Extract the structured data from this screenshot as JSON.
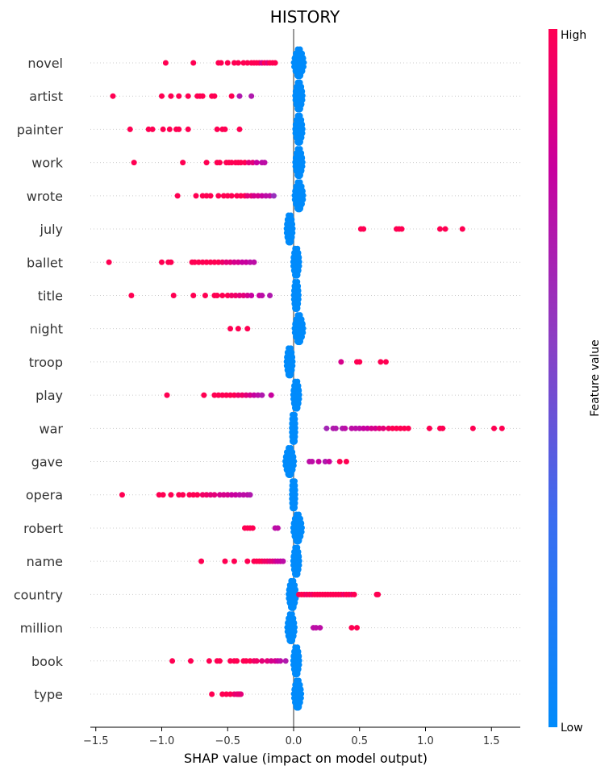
{
  "chart_data": {
    "type": "scatter",
    "subtype": "shap-beeswarm",
    "title": "HISTORY",
    "xlabel": "SHAP value (impact on model output)",
    "ylabel": "",
    "xlim": [
      -1.52,
      1.73
    ],
    "xticks": [
      -1.5,
      -1.0,
      -0.5,
      0.0,
      0.5,
      1.0,
      1.5
    ],
    "xtick_labels": [
      "−1.5",
      "−1.0",
      "−0.5",
      "0.0",
      "0.5",
      "1.0",
      "1.5"
    ],
    "grid": false,
    "colorbar": {
      "label": "Feature value",
      "high_label": "High",
      "low_label": "Low",
      "low_color": "#008bfb",
      "high_color": "#ff0052",
      "position": "right"
    },
    "features": [
      {
        "name": "novel",
        "blue_center": 0.04,
        "blue_width": 0.06,
        "points": [
          [
            -0.97,
            1
          ],
          [
            -0.76,
            1
          ],
          [
            -0.57,
            1
          ],
          [
            -0.55,
            1
          ],
          [
            -0.5,
            1
          ],
          [
            -0.45,
            1
          ],
          [
            -0.42,
            1
          ],
          [
            -0.38,
            1
          ],
          [
            -0.35,
            1
          ],
          [
            -0.32,
            1
          ],
          [
            -0.3,
            1
          ],
          [
            -0.28,
            1
          ],
          [
            -0.26,
            1
          ],
          [
            -0.24,
            0.85
          ],
          [
            -0.22,
            1
          ],
          [
            -0.2,
            0.9
          ],
          [
            -0.18,
            1
          ],
          [
            -0.16,
            1
          ],
          [
            -0.14,
            1
          ]
        ]
      },
      {
        "name": "artist",
        "blue_center": 0.04,
        "blue_width": 0.04,
        "points": [
          [
            -1.37,
            1
          ],
          [
            -1.0,
            1
          ],
          [
            -0.93,
            1
          ],
          [
            -0.87,
            1
          ],
          [
            -0.8,
            1
          ],
          [
            -0.73,
            1
          ],
          [
            -0.71,
            1
          ],
          [
            -0.69,
            1
          ],
          [
            -0.62,
            1
          ],
          [
            -0.6,
            1
          ],
          [
            -0.47,
            1
          ],
          [
            -0.41,
            0.7
          ],
          [
            -0.32,
            0.7
          ]
        ]
      },
      {
        "name": "painter",
        "blue_center": 0.04,
        "blue_width": 0.04,
        "points": [
          [
            -1.24,
            1
          ],
          [
            -1.1,
            1
          ],
          [
            -1.07,
            1
          ],
          [
            -0.99,
            1
          ],
          [
            -0.94,
            1
          ],
          [
            -0.89,
            1
          ],
          [
            -0.87,
            1
          ],
          [
            -0.8,
            1
          ],
          [
            -0.58,
            1
          ],
          [
            -0.54,
            1
          ],
          [
            -0.52,
            1
          ],
          [
            -0.41,
            1
          ]
        ]
      },
      {
        "name": "work",
        "blue_center": 0.04,
        "blue_width": 0.04,
        "points": [
          [
            -1.21,
            1
          ],
          [
            -0.84,
            1
          ],
          [
            -0.66,
            1
          ],
          [
            -0.58,
            1
          ],
          [
            -0.56,
            1
          ],
          [
            -0.51,
            1
          ],
          [
            -0.49,
            1
          ],
          [
            -0.47,
            1
          ],
          [
            -0.44,
            1
          ],
          [
            -0.42,
            1
          ],
          [
            -0.4,
            1
          ],
          [
            -0.37,
            1
          ],
          [
            -0.34,
            0.9
          ],
          [
            -0.31,
            0.9
          ],
          [
            -0.28,
            0.8
          ],
          [
            -0.24,
            0.75
          ],
          [
            -0.22,
            0.75
          ]
        ]
      },
      {
        "name": "wrote",
        "blue_center": 0.04,
        "blue_width": 0.05,
        "points": [
          [
            -0.88,
            1
          ],
          [
            -0.74,
            1
          ],
          [
            -0.69,
            1
          ],
          [
            -0.66,
            1
          ],
          [
            -0.63,
            1
          ],
          [
            -0.57,
            1
          ],
          [
            -0.53,
            1
          ],
          [
            -0.5,
            1
          ],
          [
            -0.47,
            1
          ],
          [
            -0.43,
            1
          ],
          [
            -0.4,
            1
          ],
          [
            -0.37,
            1
          ],
          [
            -0.35,
            0.9
          ],
          [
            -0.32,
            0.9
          ],
          [
            -0.3,
            0.85
          ],
          [
            -0.27,
            0.85
          ],
          [
            -0.24,
            0.8
          ],
          [
            -0.21,
            0.75
          ],
          [
            -0.18,
            0.75
          ],
          [
            -0.15,
            0.6
          ]
        ]
      },
      {
        "name": "july",
        "blue_center": -0.03,
        "blue_width": 0.03,
        "points": [
          [
            0.51,
            1
          ],
          [
            0.53,
            1
          ],
          [
            0.78,
            1
          ],
          [
            0.8,
            1
          ],
          [
            0.82,
            1
          ],
          [
            1.11,
            1
          ],
          [
            1.15,
            1
          ],
          [
            1.28,
            1
          ]
        ]
      },
      {
        "name": "ballet",
        "blue_center": 0.02,
        "blue_width": 0.03,
        "points": [
          [
            -1.4,
            1
          ],
          [
            -1.0,
            1
          ],
          [
            -0.95,
            1
          ],
          [
            -0.93,
            1
          ],
          [
            -0.77,
            1
          ],
          [
            -0.75,
            1
          ],
          [
            -0.72,
            1
          ],
          [
            -0.69,
            1
          ],
          [
            -0.66,
            1
          ],
          [
            -0.63,
            1
          ],
          [
            -0.6,
            1
          ],
          [
            -0.57,
            1
          ],
          [
            -0.54,
            0.95
          ],
          [
            -0.51,
            0.9
          ],
          [
            -0.48,
            0.9
          ],
          [
            -0.45,
            0.85
          ],
          [
            -0.42,
            0.85
          ],
          [
            -0.39,
            0.8
          ],
          [
            -0.36,
            0.8
          ],
          [
            -0.33,
            0.75
          ],
          [
            -0.3,
            0.75
          ]
        ]
      },
      {
        "name": "title",
        "blue_center": 0.02,
        "blue_width": 0.02,
        "points": [
          [
            -1.23,
            1
          ],
          [
            -0.91,
            1
          ],
          [
            -0.76,
            1
          ],
          [
            -0.67,
            1
          ],
          [
            -0.6,
            1
          ],
          [
            -0.58,
            1
          ],
          [
            -0.54,
            1
          ],
          [
            -0.5,
            1
          ],
          [
            -0.47,
            0.95
          ],
          [
            -0.44,
            0.95
          ],
          [
            -0.41,
            0.9
          ],
          [
            -0.38,
            0.9
          ],
          [
            -0.35,
            0.85
          ],
          [
            -0.32,
            0.8
          ],
          [
            -0.26,
            0.8
          ],
          [
            -0.24,
            0.75
          ],
          [
            -0.18,
            0.7
          ]
        ]
      },
      {
        "name": "night",
        "blue_center": 0.04,
        "blue_width": 0.05,
        "points": [
          [
            -0.48,
            1
          ],
          [
            -0.42,
            1
          ],
          [
            -0.35,
            1
          ]
        ]
      },
      {
        "name": "troop",
        "blue_center": -0.03,
        "blue_width": 0.03,
        "points": [
          [
            0.36,
            0.85
          ],
          [
            0.48,
            1
          ],
          [
            0.5,
            1
          ],
          [
            0.66,
            1
          ],
          [
            0.7,
            1
          ]
        ]
      },
      {
        "name": "play",
        "blue_center": 0.02,
        "blue_width": 0.03,
        "points": [
          [
            -0.96,
            1
          ],
          [
            -0.68,
            1
          ],
          [
            -0.6,
            1
          ],
          [
            -0.57,
            1
          ],
          [
            -0.54,
            1
          ],
          [
            -0.51,
            1
          ],
          [
            -0.48,
            1
          ],
          [
            -0.45,
            1
          ],
          [
            -0.42,
            0.95
          ],
          [
            -0.39,
            0.95
          ],
          [
            -0.36,
            0.9
          ],
          [
            -0.33,
            0.85
          ],
          [
            -0.3,
            0.8
          ],
          [
            -0.27,
            0.75
          ],
          [
            -0.24,
            0.7
          ],
          [
            -0.17,
            0.8
          ]
        ]
      },
      {
        "name": "war",
        "blue_center": 0.0,
        "blue_width": 0.01,
        "points": [
          [
            0.25,
            0.65
          ],
          [
            0.3,
            0.7
          ],
          [
            0.32,
            0.7
          ],
          [
            0.37,
            0.7
          ],
          [
            0.39,
            0.75
          ],
          [
            0.44,
            0.75
          ],
          [
            0.47,
            0.75
          ],
          [
            0.5,
            0.75
          ],
          [
            0.53,
            0.8
          ],
          [
            0.56,
            0.8
          ],
          [
            0.59,
            0.85
          ],
          [
            0.62,
            0.85
          ],
          [
            0.65,
            0.9
          ],
          [
            0.68,
            0.9
          ],
          [
            0.72,
            0.95
          ],
          [
            0.75,
            1
          ],
          [
            0.78,
            1
          ],
          [
            0.81,
            1
          ],
          [
            0.84,
            1
          ],
          [
            0.87,
            1
          ],
          [
            1.03,
            1
          ],
          [
            1.11,
            1
          ],
          [
            1.13,
            1
          ],
          [
            1.36,
            1
          ],
          [
            1.52,
            1
          ],
          [
            1.58,
            1
          ]
        ]
      },
      {
        "name": "gave",
        "blue_center": -0.03,
        "blue_width": 0.05,
        "points": [
          [
            0.12,
            0.75
          ],
          [
            0.14,
            0.75
          ],
          [
            0.19,
            0.8
          ],
          [
            0.24,
            0.7
          ],
          [
            0.27,
            0.8
          ],
          [
            0.35,
            1
          ],
          [
            0.4,
            1
          ]
        ]
      },
      {
        "name": "opera",
        "blue_center": 0.0,
        "blue_width": 0.01,
        "points": [
          [
            -1.3,
            1
          ],
          [
            -1.02,
            1
          ],
          [
            -0.99,
            1
          ],
          [
            -0.93,
            1
          ],
          [
            -0.87,
            1
          ],
          [
            -0.84,
            1
          ],
          [
            -0.79,
            1
          ],
          [
            -0.76,
            1
          ],
          [
            -0.73,
            1
          ],
          [
            -0.69,
            0.95
          ],
          [
            -0.66,
            0.95
          ],
          [
            -0.63,
            0.9
          ],
          [
            -0.6,
            0.9
          ],
          [
            -0.56,
            0.85
          ],
          [
            -0.53,
            0.85
          ],
          [
            -0.5,
            0.85
          ],
          [
            -0.47,
            0.8
          ],
          [
            -0.44,
            0.8
          ],
          [
            -0.41,
            0.75
          ],
          [
            -0.38,
            0.75
          ],
          [
            -0.35,
            0.75
          ],
          [
            -0.33,
            0.7
          ]
        ]
      },
      {
        "name": "robert",
        "blue_center": 0.03,
        "blue_width": 0.05,
        "points": [
          [
            -0.37,
            1
          ],
          [
            -0.35,
            1
          ],
          [
            -0.33,
            1
          ],
          [
            -0.31,
            1
          ],
          [
            -0.14,
            0.75
          ],
          [
            -0.12,
            0.75
          ]
        ]
      },
      {
        "name": "name",
        "blue_center": 0.02,
        "blue_width": 0.03,
        "points": [
          [
            -0.7,
            1
          ],
          [
            -0.52,
            1
          ],
          [
            -0.45,
            1
          ],
          [
            -0.35,
            1
          ],
          [
            -0.3,
            1
          ],
          [
            -0.28,
            1
          ],
          [
            -0.26,
            1
          ],
          [
            -0.24,
            1
          ],
          [
            -0.22,
            0.95
          ],
          [
            -0.2,
            0.95
          ],
          [
            -0.18,
            0.9
          ],
          [
            -0.16,
            0.9
          ],
          [
            -0.14,
            0.85
          ],
          [
            -0.12,
            0.8
          ],
          [
            -0.1,
            0.8
          ],
          [
            -0.08,
            0.75
          ]
        ]
      },
      {
        "name": "country",
        "blue_center": -0.01,
        "blue_width": 0.04,
        "points": [
          [
            0.04,
            1
          ],
          [
            0.06,
            1
          ],
          [
            0.08,
            1
          ],
          [
            0.1,
            0.95
          ],
          [
            0.12,
            1
          ],
          [
            0.14,
            0.95
          ],
          [
            0.16,
            1
          ],
          [
            0.18,
            1
          ],
          [
            0.2,
            1
          ],
          [
            0.22,
            1
          ],
          [
            0.24,
            1
          ],
          [
            0.26,
            1
          ],
          [
            0.28,
            1
          ],
          [
            0.3,
            1
          ],
          [
            0.32,
            1
          ],
          [
            0.34,
            1
          ],
          [
            0.36,
            1
          ],
          [
            0.38,
            0.95
          ],
          [
            0.4,
            1
          ],
          [
            0.42,
            1
          ],
          [
            0.44,
            0.95
          ],
          [
            0.46,
            1
          ],
          [
            0.63,
            1
          ],
          [
            0.64,
            1
          ]
        ]
      },
      {
        "name": "million",
        "blue_center": -0.02,
        "blue_width": 0.04,
        "points": [
          [
            0.15,
            0.75
          ],
          [
            0.17,
            0.75
          ],
          [
            0.2,
            0.75
          ],
          [
            0.44,
            1
          ],
          [
            0.48,
            1
          ]
        ]
      },
      {
        "name": "book",
        "blue_center": 0.02,
        "blue_width": 0.03,
        "points": [
          [
            -0.92,
            1
          ],
          [
            -0.78,
            1
          ],
          [
            -0.64,
            1
          ],
          [
            -0.58,
            1
          ],
          [
            -0.56,
            1
          ],
          [
            -0.48,
            1
          ],
          [
            -0.45,
            1
          ],
          [
            -0.43,
            1
          ],
          [
            -0.38,
            1
          ],
          [
            -0.36,
            1
          ],
          [
            -0.33,
            1
          ],
          [
            -0.3,
            0.95
          ],
          [
            -0.28,
            0.95
          ],
          [
            -0.24,
            0.9
          ],
          [
            -0.2,
            0.9
          ],
          [
            -0.17,
            0.85
          ],
          [
            -0.14,
            0.85
          ],
          [
            -0.12,
            0.8
          ],
          [
            -0.1,
            0.75
          ],
          [
            -0.06,
            0.7
          ]
        ]
      },
      {
        "name": "type",
        "blue_center": 0.03,
        "blue_width": 0.04,
        "points": [
          [
            -0.62,
            1
          ],
          [
            -0.54,
            1
          ],
          [
            -0.51,
            1
          ],
          [
            -0.48,
            1
          ],
          [
            -0.45,
            0.95
          ],
          [
            -0.43,
            0.9
          ],
          [
            -0.42,
            0.9
          ],
          [
            -0.41,
            0.95
          ],
          [
            -0.4,
            0.9
          ]
        ]
      }
    ]
  }
}
